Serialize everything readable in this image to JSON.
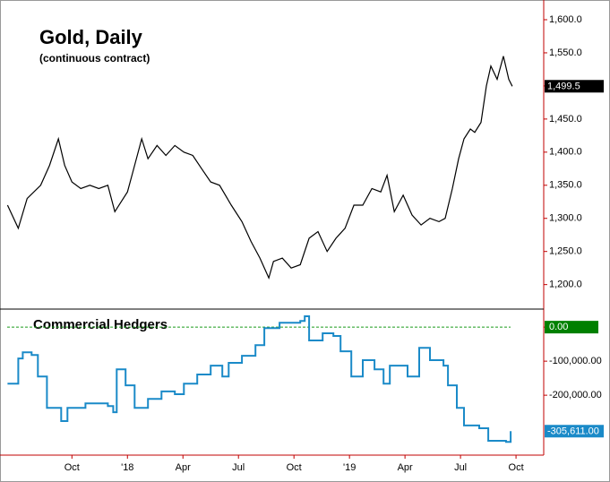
{
  "chart_data": [
    {
      "type": "line",
      "title": "Gold, Daily",
      "subtitle": "(continuous contract)",
      "series": [
        {
          "name": "Gold",
          "color": "#000000",
          "x": [
            5.52,
            6.1,
            6.58,
            7.31,
            7.79,
            8.27,
            8.61,
            9,
            9.48,
            9.97,
            10.45,
            10.94,
            11.32,
            11.66,
            12.0,
            12.29,
            12.77,
            13.11,
            13.6,
            14.08,
            14.56,
            15.05,
            15.53,
            16.01,
            16.5,
            16.98,
            17.61,
            18.19,
            18.68,
            19.16,
            19.64,
            19.89,
            20.37,
            20.85,
            21.34,
            21.82,
            22.3,
            22.79,
            23.27,
            23.76,
            24.24,
            24.72,
            25.21,
            25.69,
            26.03,
            26.42,
            26.9,
            27.38,
            27.87,
            28.35,
            28.84,
            29.17,
            29.56,
            29.9,
            30.19,
            30.53,
            30.77,
            31.11,
            31.4,
            31.64,
            31.98,
            32.32,
            32.61,
            32.8
          ],
          "values": [
            1320,
            1285,
            1330,
            1350,
            1380,
            1420,
            1380,
            1355,
            1345,
            1350,
            1345,
            1350,
            1310,
            1325,
            1340,
            1370,
            1420,
            1390,
            1410,
            1395,
            1410,
            1400,
            1395,
            1375,
            1355,
            1350,
            1320,
            1295,
            1265,
            1240,
            1210,
            1235,
            1240,
            1225,
            1230,
            1270,
            1280,
            1250,
            1270,
            1285,
            1320,
            1320,
            1345,
            1340,
            1365,
            1310,
            1335,
            1305,
            1290,
            1300,
            1295,
            1300,
            1345,
            1390,
            1420,
            1435,
            1430,
            1445,
            1500,
            1530,
            1510,
            1545,
            1510,
            1499.5
          ],
          "value_labels": [
            null,
            null,
            null,
            null,
            null,
            null,
            null,
            null,
            null,
            null,
            null,
            null,
            null,
            null,
            null,
            null,
            null,
            null,
            null,
            null,
            null,
            null,
            null,
            null,
            null,
            null,
            null,
            null,
            null,
            null,
            null,
            null,
            null,
            null,
            null,
            null,
            null,
            null,
            null,
            null,
            null,
            null,
            null,
            null,
            null,
            null,
            null,
            null,
            null,
            null,
            null,
            null,
            null,
            null,
            null,
            null,
            null,
            null,
            null,
            null,
            null,
            null,
            null,
            "1,499.5"
          ]
        }
      ],
      "xlim": [
        5.5,
        34.4
      ],
      "ylim": [
        1163,
        1623
      ],
      "yticks": [
        {
          "value": 1200,
          "label": "1,200.0"
        },
        {
          "value": 1250,
          "label": "1,250.0"
        },
        {
          "value": 1300,
          "label": "1,300.0"
        },
        {
          "value": 1350,
          "label": "1,350.0"
        },
        {
          "value": 1400,
          "label": "1,400.0"
        },
        {
          "value": 1450,
          "label": "1,450.0"
        },
        {
          "value": 1500,
          "label": "1,500.0"
        },
        {
          "value": 1550,
          "label": "1,550.0"
        },
        {
          "value": 1600,
          "label": "1,600.0"
        }
      ]
    },
    {
      "type": "step",
      "series": [
        {
          "name": "Commercial Hedgers",
          "color": "#1a8ac8",
          "x": [
            5.52,
            6.1,
            6.34,
            6.82,
            7.16,
            7.65,
            8.42,
            8.76,
            9.73,
            10.94,
            11.23,
            11.42,
            11.9,
            12.39,
            13.11,
            13.84,
            14.56,
            15.05,
            15.77,
            16.5,
            17.13,
            17.47,
            18.19,
            18.92,
            19.4,
            20.22,
            21.34,
            21.58,
            21.82,
            22.55,
            23.13,
            23.52,
            24.1,
            24.72,
            25.35,
            25.84,
            26.18,
            27.14,
            27.77,
            28.35,
            29.08,
            29.32,
            29.8,
            30.19,
            31.01,
            31.5,
            32.46,
            32.71
          ],
          "values": [
            -166000,
            -92000,
            -74000,
            -82000,
            -145000,
            -237000,
            -276000,
            -237000,
            -224000,
            -232000,
            -250000,
            -124000,
            -171000,
            -237000,
            -211000,
            -189000,
            -197000,
            -166000,
            -139000,
            -113000,
            -145000,
            -105000,
            -84000,
            -53000,
            -3000,
            13000,
            18000,
            32000,
            -39000,
            -18000,
            -26000,
            -71000,
            -145000,
            -97000,
            -124000,
            -166000,
            -113000,
            -145000,
            -61000,
            -97000,
            -113000,
            -171000,
            -237000,
            -289000,
            -297000,
            -334000,
            -337000,
            -305611
          ],
          "value_labels": [
            null,
            null,
            null,
            null,
            null,
            null,
            null,
            null,
            null,
            null,
            null,
            null,
            null,
            null,
            null,
            null,
            null,
            null,
            null,
            null,
            null,
            null,
            null,
            null,
            null,
            null,
            null,
            null,
            null,
            null,
            null,
            null,
            null,
            null,
            null,
            null,
            null,
            null,
            null,
            null,
            null,
            null,
            null,
            null,
            null,
            null,
            null,
            "-305,611.00"
          ]
        }
      ],
      "reference_value": 0,
      "xlim": [
        5.5,
        34.4
      ],
      "ylim": [
        -376000,
        53000
      ],
      "yticks": [
        {
          "value": -200000,
          "label": "-200,000.00"
        },
        {
          "value": -100000,
          "label": "-100,000.00"
        },
        {
          "value": 0,
          "label": "0.00"
        }
      ],
      "xticks": [
        {
          "value": 9,
          "label": "Oct"
        },
        {
          "value": 12,
          "label": "'18"
        },
        {
          "value": 15,
          "label": "Apr"
        },
        {
          "value": 18,
          "label": "Jul"
        },
        {
          "value": 21,
          "label": "Oct"
        },
        {
          "value": 24,
          "label": "'19"
        },
        {
          "value": 27,
          "label": "Apr"
        },
        {
          "value": 30,
          "label": "Jul"
        },
        {
          "value": 33,
          "label": "Oct"
        }
      ]
    }
  ]
}
